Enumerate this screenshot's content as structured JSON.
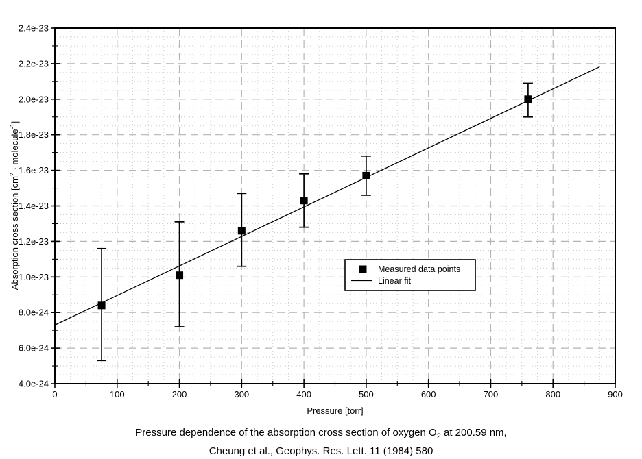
{
  "figure": {
    "caption_line1_prefix": "Pressure dependence of the absorption cross section of oxygen O",
    "caption_line1_sub": "2",
    "caption_line1_suffix": " at 200.59 nm,",
    "caption_line2": "Cheung et al., Geophys. Res. Lett. 11 (1984) 580"
  },
  "axes": {
    "x_label": "Pressure [torr]",
    "y_label_prefix": "Absorption cross section [cm",
    "y_label_sup1": "2",
    "y_label_mid": " · molecule",
    "y_label_sup2": "-1",
    "y_label_suffix": "]"
  },
  "chart_data": {
    "type": "scatter",
    "title": "",
    "xlabel": "Pressure [torr]",
    "ylabel": "Absorption cross section [cm^2 · molecule^-1]",
    "xlim": [
      0,
      900
    ],
    "ylim": [
      4e-24,
      2.4e-23
    ],
    "x_major_step": 100,
    "x_minor_step": 25,
    "y_major_step": 2e-24,
    "y_minor_step": 5e-25,
    "x_tick_labels": [
      "0",
      "100",
      "200",
      "300",
      "400",
      "500",
      "600",
      "700",
      "800",
      "900"
    ],
    "y_tick_labels": [
      "4.0e-24",
      "6.0e-24",
      "8.0e-24",
      "1.0e-23",
      "1.2e-23",
      "1.4e-23",
      "1.6e-23",
      "1.8e-23",
      "2.0e-23",
      "2.2e-23",
      "2.4e-23"
    ],
    "grid": {
      "major": "dashed-gray",
      "minor": "dotted-light-gray"
    },
    "legend": {
      "position": "inside-right-middle",
      "entries": [
        "Measured data points",
        "Linear fit"
      ]
    },
    "colors": {
      "data": "#000000",
      "fit": "#000000",
      "major_grid": "#b4b4b4",
      "minor_grid": "#cccccc"
    },
    "series": [
      {
        "name": "Measured data points",
        "type": "scatter",
        "marker": "filled-square",
        "color": "#000000",
        "points": [
          {
            "x": 75,
            "y": 8.4e-24,
            "y_err_low": 5.3e-24,
            "y_err_high": 1.16e-23
          },
          {
            "x": 200,
            "y": 1.01e-23,
            "y_err_low": 7.2e-24,
            "y_err_high": 1.31e-23
          },
          {
            "x": 300,
            "y": 1.26e-23,
            "y_err_low": 1.06e-23,
            "y_err_high": 1.47e-23
          },
          {
            "x": 400,
            "y": 1.43e-23,
            "y_err_low": 1.28e-23,
            "y_err_high": 1.58e-23
          },
          {
            "x": 500,
            "y": 1.57e-23,
            "y_err_low": 1.46e-23,
            "y_err_high": 1.68e-23
          },
          {
            "x": 760,
            "y": 2e-23,
            "y_err_low": 1.9e-23,
            "y_err_high": 2.09e-23
          }
        ]
      },
      {
        "name": "Linear fit",
        "type": "line",
        "color": "#000000",
        "x_range": [
          0,
          875
        ],
        "intercept": 7.3e-24,
        "slope": 1.66e-26
      }
    ]
  }
}
